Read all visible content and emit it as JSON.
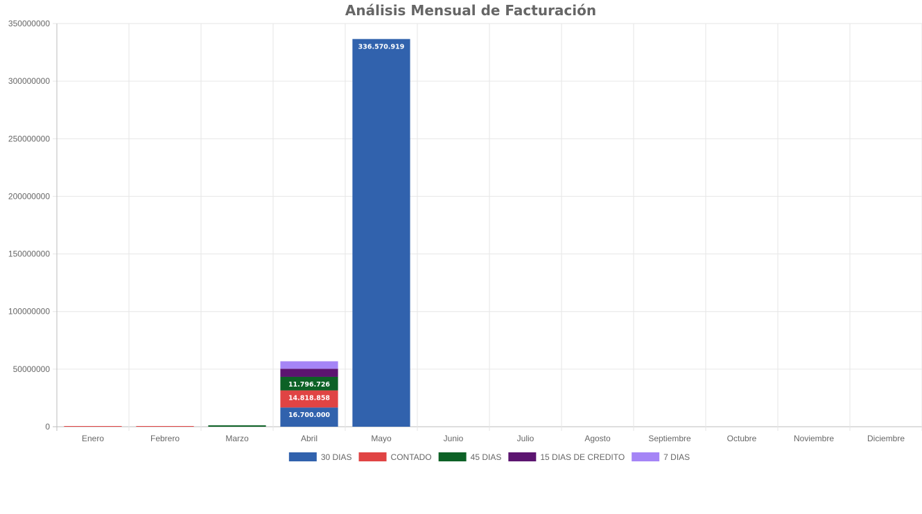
{
  "chart_data": {
    "type": "bar",
    "stacked": true,
    "title": "Análisis Mensual de Facturación",
    "xlabel": "",
    "ylabel": "",
    "ylim": [
      0,
      350000000
    ],
    "yticks": [
      0,
      50000000,
      100000000,
      150000000,
      200000000,
      250000000,
      300000000,
      350000000
    ],
    "ytick_labels": [
      "0",
      "50000000",
      "100000000",
      "150000000",
      "200000000",
      "250000000",
      "300000000",
      "350000000"
    ],
    "grid": true,
    "legend_position": "bottom",
    "categories": [
      "Enero",
      "Febrero",
      "Marzo",
      "Abril",
      "Mayo",
      "Junio",
      "Julio",
      "Agosto",
      "Septiembre",
      "Octubre",
      "Noviembre",
      "Diciembre"
    ],
    "series": [
      {
        "name": "30 DIAS",
        "color": "#3162ad",
        "values": [
          0,
          0,
          0,
          16700000,
          336570919,
          0,
          0,
          0,
          0,
          0,
          0,
          0
        ],
        "labels": [
          "",
          "",
          "",
          "16.700.000",
          "336.570.919",
          "",
          "",
          "",
          "",
          "",
          "",
          ""
        ]
      },
      {
        "name": "CONTADO",
        "color": "#e04444",
        "values": [
          300000,
          400000,
          0,
          14818858,
          0,
          0,
          0,
          0,
          0,
          0,
          0,
          0
        ],
        "labels": [
          "",
          "",
          "",
          "14.818.858",
          "",
          "",
          "",
          "",
          "",
          "",
          "",
          ""
        ]
      },
      {
        "name": "45 DIAS",
        "color": "#0d6126",
        "values": [
          0,
          0,
          1200000,
          11796726,
          0,
          0,
          0,
          0,
          0,
          0,
          0,
          0
        ],
        "labels": [
          "",
          "",
          "",
          "11.796.726",
          "",
          "",
          "",
          "",
          "",
          "",
          "",
          ""
        ]
      },
      {
        "name": "15 DIAS DE CREDITO",
        "color": "#5c1570",
        "values": [
          0,
          0,
          0,
          7000000,
          0,
          0,
          0,
          0,
          0,
          0,
          0,
          0
        ],
        "labels": [
          "",
          "",
          "",
          "",
          "",
          "",
          "",
          "",
          "",
          "",
          "",
          ""
        ]
      },
      {
        "name": "7 DIAS",
        "color": "#a585f6",
        "values": [
          0,
          0,
          0,
          6500000,
          0,
          0,
          0,
          0,
          0,
          0,
          0,
          0
        ],
        "labels": [
          "",
          "",
          "",
          "",
          "",
          "",
          "",
          "",
          "",
          "",
          "",
          ""
        ]
      }
    ]
  }
}
